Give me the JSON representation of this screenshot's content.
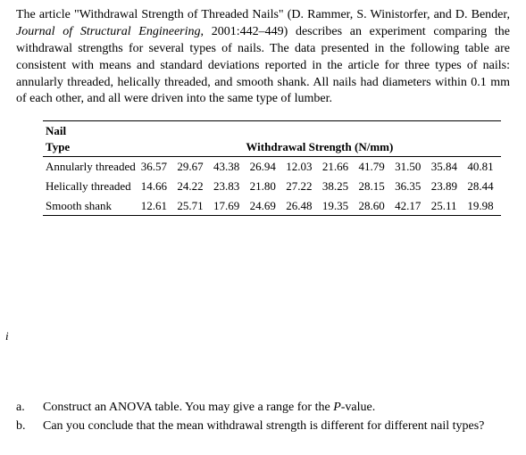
{
  "intro": {
    "before_journal": "The article \"Withdrawal Strength of Threaded Nails\" (D. Rammer, S. Winistorfer, and D. Bender, ",
    "journal": "Journal of Structural Engineering",
    "after_journal": ", 2001:442–449) describes an experiment comparing the withdrawal strengths for several types of nails. The data presented in the following table are consistent with means and standard deviations reported in the article for three types of nails: annularly threaded, helically threaded, and smooth shank. All nails had diameters within 0.1 mm of each other, and all were driven into the same type of lumber."
  },
  "table": {
    "header_label_line1": "Nail",
    "header_label_line2": "Type",
    "header_data": "Withdrawal Strength (N/mm)",
    "rows": [
      {
        "label": "Annularly threaded",
        "v0": "36.57",
        "v1": "29.67",
        "v2": "43.38",
        "v3": "26.94",
        "v4": "12.03",
        "v5": "21.66",
        "v6": "41.79",
        "v7": "31.50",
        "v8": "35.84",
        "v9": "40.81"
      },
      {
        "label": "Helically threaded",
        "v0": "14.66",
        "v1": "24.22",
        "v2": "23.83",
        "v3": "21.80",
        "v4": "27.22",
        "v5": "38.25",
        "v6": "28.15",
        "v7": "36.35",
        "v8": "23.89",
        "v9": "28.44"
      },
      {
        "label": "Smooth shank",
        "v0": "12.61",
        "v1": "25.71",
        "v2": "17.69",
        "v3": "24.69",
        "v4": "26.48",
        "v5": "19.35",
        "v6": "28.60",
        "v7": "42.17",
        "v8": "25.11",
        "v9": "19.98"
      }
    ]
  },
  "cursor": "i",
  "questions": {
    "a": {
      "letter": "a.",
      "before_italic": "Construct an ANOVA table. You may give a range for the ",
      "italic": "P",
      "after_italic": "-value."
    },
    "b": {
      "letter": "b.",
      "text": "Can you conclude that the mean withdrawal strength is different for different nail types?"
    }
  }
}
